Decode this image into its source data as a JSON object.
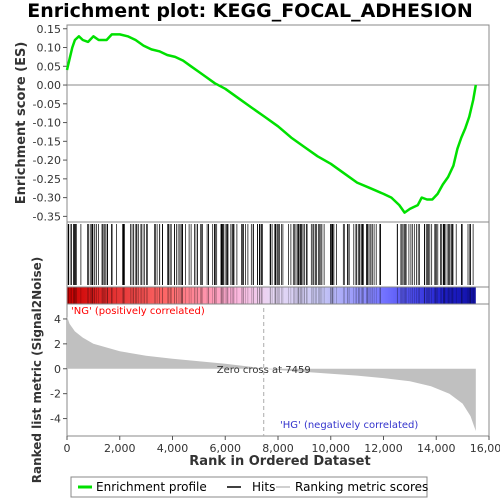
{
  "chart_data": {
    "type": "line",
    "title": "Enrichment plot: KEGG_FOCAL_ADHESION",
    "es_panel": {
      "ylabel": "Enrichment score (ES)",
      "ylim": [
        -0.365,
        0.16
      ],
      "yticks": [
        0.15,
        0.1,
        0.05,
        0.0,
        -0.05,
        -0.1,
        -0.15,
        -0.2,
        -0.25,
        -0.3,
        -0.35
      ],
      "ytick_labels": [
        "0.15",
        "0.10",
        "0.05",
        "0.00",
        "-0.05",
        "-0.10",
        "-0.15",
        "-0.20",
        "-0.25",
        "-0.30",
        "-0.35"
      ],
      "series_name": "Enrichment profile",
      "color": "#00e000",
      "points": [
        [
          0,
          0.04
        ],
        [
          100,
          0.07
        ],
        [
          200,
          0.1
        ],
        [
          300,
          0.12
        ],
        [
          450,
          0.13
        ],
        [
          600,
          0.12
        ],
        [
          800,
          0.115
        ],
        [
          1000,
          0.13
        ],
        [
          1200,
          0.12
        ],
        [
          1500,
          0.12
        ],
        [
          1700,
          0.135
        ],
        [
          2000,
          0.135
        ],
        [
          2300,
          0.13
        ],
        [
          2600,
          0.12
        ],
        [
          2900,
          0.105
        ],
        [
          3200,
          0.095
        ],
        [
          3500,
          0.09
        ],
        [
          3800,
          0.08
        ],
        [
          4100,
          0.075
        ],
        [
          4400,
          0.065
        ],
        [
          4700,
          0.05
        ],
        [
          5000,
          0.035
        ],
        [
          5300,
          0.02
        ],
        [
          5600,
          0.005
        ],
        [
          6000,
          -0.01
        ],
        [
          6500,
          -0.035
        ],
        [
          7000,
          -0.06
        ],
        [
          7500,
          -0.085
        ],
        [
          8000,
          -0.11
        ],
        [
          8500,
          -0.14
        ],
        [
          9000,
          -0.165
        ],
        [
          9500,
          -0.19
        ],
        [
          10000,
          -0.21
        ],
        [
          10500,
          -0.235
        ],
        [
          11000,
          -0.26
        ],
        [
          11500,
          -0.275
        ],
        [
          12000,
          -0.29
        ],
        [
          12300,
          -0.3
        ],
        [
          12600,
          -0.32
        ],
        [
          12800,
          -0.34
        ],
        [
          13000,
          -0.33
        ],
        [
          13150,
          -0.325
        ],
        [
          13300,
          -0.32
        ],
        [
          13450,
          -0.3
        ],
        [
          13650,
          -0.305
        ],
        [
          13850,
          -0.305
        ],
        [
          14050,
          -0.29
        ],
        [
          14250,
          -0.265
        ],
        [
          14450,
          -0.245
        ],
        [
          14650,
          -0.215
        ],
        [
          14800,
          -0.17
        ],
        [
          14950,
          -0.14
        ],
        [
          15100,
          -0.115
        ],
        [
          15250,
          -0.085
        ],
        [
          15400,
          -0.04
        ],
        [
          15500,
          0.0
        ]
      ]
    },
    "hits_panel": {
      "series_name": "Hits",
      "dense_ranges": [
        [
          0,
          600
        ],
        [
          700,
          2200
        ],
        [
          2350,
          3100
        ],
        [
          3300,
          5700
        ],
        [
          5800,
          7600
        ],
        [
          7700,
          10300
        ],
        [
          10400,
          11900
        ],
        [
          12500,
          13400
        ],
        [
          13500,
          15500
        ]
      ]
    },
    "ranked_panel": {
      "ylabel": "Ranked list metric (Signal2Noise)",
      "xlabel": "Rank in Ordered Dataset",
      "xlim": [
        0,
        16000
      ],
      "xticks": [
        0,
        2000,
        4000,
        6000,
        8000,
        10000,
        12000,
        14000,
        16000
      ],
      "xtick_labels": [
        "0",
        "2,000",
        "4,000",
        "6,000",
        "8,000",
        "10,000",
        "12,000",
        "14,000",
        "16,000"
      ],
      "ylim": [
        -5.4,
        5.2
      ],
      "yticks": [
        4,
        2,
        0,
        -2,
        -4
      ],
      "ytick_labels": [
        "4",
        "2",
        "0",
        "-2",
        "-4"
      ],
      "series_name": "Ranking metric scores",
      "color": "#c0c0c0",
      "points": [
        [
          0,
          4.2
        ],
        [
          100,
          3.6
        ],
        [
          300,
          3.0
        ],
        [
          600,
          2.5
        ],
        [
          1000,
          2.0
        ],
        [
          2000,
          1.4
        ],
        [
          3000,
          1.05
        ],
        [
          4000,
          0.8
        ],
        [
          5000,
          0.6
        ],
        [
          6000,
          0.4
        ],
        [
          7000,
          0.15
        ],
        [
          7459,
          0.0
        ],
        [
          8000,
          -0.1
        ],
        [
          9000,
          -0.25
        ],
        [
          10000,
          -0.4
        ],
        [
          11000,
          -0.55
        ],
        [
          12000,
          -0.75
        ],
        [
          13000,
          -1.0
        ],
        [
          13800,
          -1.4
        ],
        [
          14500,
          -2.0
        ],
        [
          15000,
          -2.8
        ],
        [
          15300,
          -3.8
        ],
        [
          15500,
          -5.0
        ]
      ],
      "zero_cross_label": "Zero cross at 7459",
      "zero_cross_x": 7459,
      "pos_label": "'NG' (positively correlated)",
      "neg_label": "'HG' (negatively correlated)",
      "pos_color": "#ff0000",
      "neg_color": "#3333cc"
    },
    "legend_placement": "bottom",
    "legend": [
      "Enrichment profile",
      "Hits",
      "Ranking metric scores"
    ]
  }
}
